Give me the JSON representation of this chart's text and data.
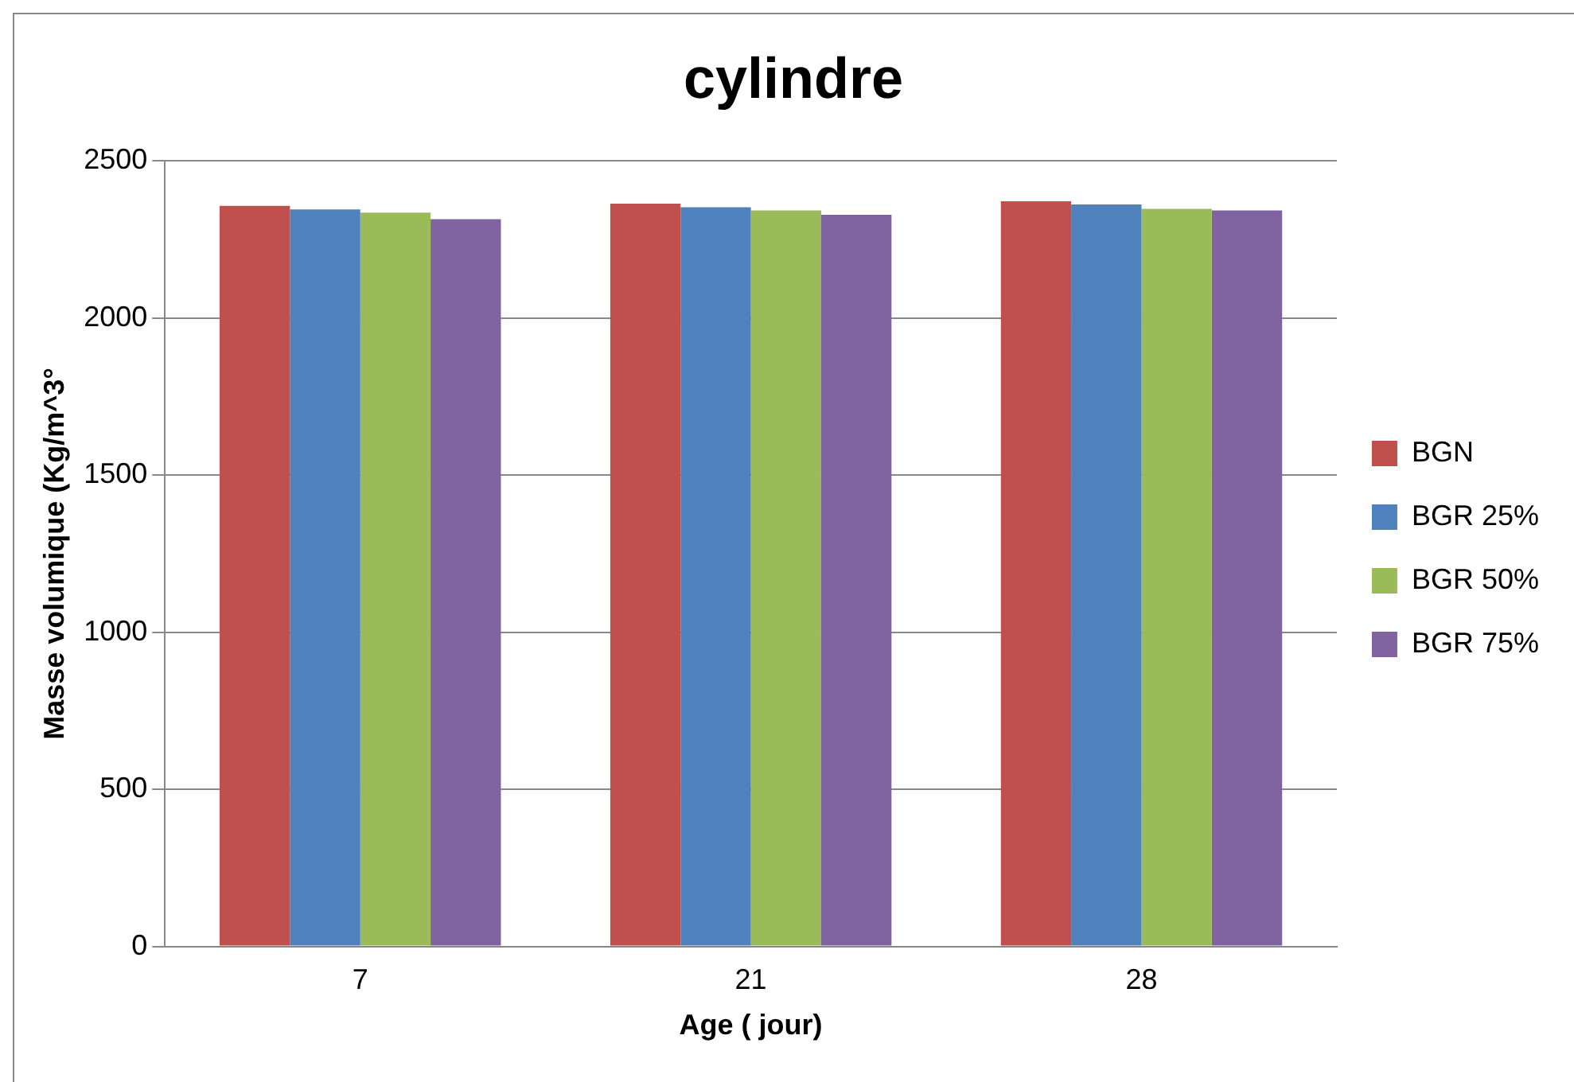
{
  "chart_data": {
    "type": "bar",
    "title": "cylindre",
    "xlabel": "Age ( jour)",
    "ylabel": "Masse volumique (Kg/m^3°",
    "categories": [
      "7",
      "21",
      "28"
    ],
    "series": [
      {
        "name": "BGN",
        "color": "#c0504d",
        "values": [
          2357,
          2364,
          2372
        ]
      },
      {
        "name": "BGR 25%",
        "color": "#4f81bd",
        "values": [
          2346,
          2353,
          2362
        ]
      },
      {
        "name": "BGR 50%",
        "color": "#9bbb59",
        "values": [
          2336,
          2343,
          2348
        ]
      },
      {
        "name": "BGR 75%",
        "color": "#8064a2",
        "values": [
          2315,
          2329,
          2343
        ]
      }
    ],
    "ylim": [
      0,
      2500
    ],
    "yticks": [
      0,
      500,
      1000,
      1500,
      2000,
      2500
    ],
    "grid": "y",
    "legend": "right"
  }
}
